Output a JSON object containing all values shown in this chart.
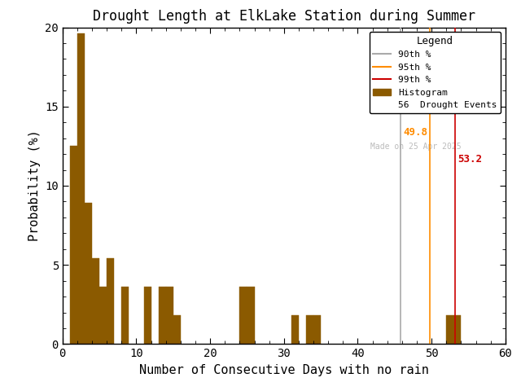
{
  "title": "Drought Length at ElkLake Station during Summer",
  "xlabel": "Number of Consecutive Days with no rain",
  "ylabel": "Probability (%)",
  "bar_color": "#8B5A00",
  "bar_edge_color": "#8B5A00",
  "xlim": [
    0,
    60
  ],
  "ylim": [
    0,
    20
  ],
  "xticks": [
    0,
    10,
    20,
    30,
    40,
    50,
    60
  ],
  "yticks": [
    0,
    5,
    10,
    15,
    20
  ],
  "percentile_90": 45.8,
  "percentile_95": 49.8,
  "percentile_99": 53.2,
  "percentile_90_color": "#AAAAAA",
  "percentile_95_color": "#FF8C00",
  "percentile_99_color": "#CC0000",
  "percentile_90_label_color": "#00BB00",
  "percentile_95_label_color": "#FF8C00",
  "percentile_99_label_color": "#CC0000",
  "n_events": 56,
  "watermark": "Made on 25 Apr 2025",
  "watermark_color": "#BBBBBB",
  "legend_title": "Legend",
  "legend_90_color": "#AAAAAA",
  "legend_95_color": "#FF8C00",
  "legend_99_color": "#CC0000",
  "bin_left": [
    1,
    2,
    3,
    4,
    5,
    6,
    7,
    8,
    9,
    10,
    11,
    12,
    13,
    14,
    15,
    16,
    17,
    18,
    19,
    20,
    21,
    22,
    23,
    24,
    25,
    26,
    27,
    28,
    29,
    30,
    31,
    32,
    33,
    34,
    35,
    36,
    37,
    38,
    39,
    40,
    41,
    42,
    43,
    44,
    45,
    46,
    47,
    48,
    49,
    50,
    51,
    52,
    53,
    54,
    55,
    56,
    57,
    58,
    59
  ],
  "bar_heights": [
    12.5,
    19.6,
    8.9,
    5.4,
    3.6,
    5.4,
    0.0,
    3.6,
    0.0,
    0.0,
    3.6,
    0.0,
    3.6,
    3.6,
    1.8,
    0.0,
    0.0,
    0.0,
    0.0,
    0.0,
    0.0,
    0.0,
    0.0,
    3.6,
    3.6,
    0.0,
    0.0,
    0.0,
    0.0,
    0.0,
    1.8,
    0.0,
    1.8,
    1.8,
    0.0,
    0.0,
    0.0,
    0.0,
    0.0,
    0.0,
    0.0,
    0.0,
    0.0,
    0.0,
    0.0,
    0.0,
    0.0,
    0.0,
    0.0,
    0.0,
    0.0,
    1.8,
    1.8,
    0.0,
    0.0,
    0.0,
    0.0,
    0.0,
    0.0
  ]
}
